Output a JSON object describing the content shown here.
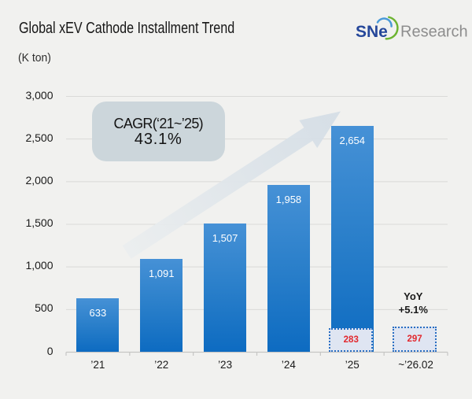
{
  "title": "Global xEV Cathode Installment Trend",
  "unit_label": "(K ton)",
  "logo": {
    "brand_sne": "SNe",
    "brand_research": "Research",
    "sne_color": "#25479a",
    "research_color": "#8d8d8d",
    "arc_blue": "#4a9ad8",
    "arc_green": "#6db431"
  },
  "annotations": {
    "cagr_line1": "CAGR(‘21~’25)",
    "cagr_line2": "43.1%",
    "yoy_line1": "YoY",
    "yoy_line2": "+5.1%"
  },
  "colors": {
    "background": "#f1f1ef",
    "gridline": "#dadad8",
    "axis": "#c6c6c4",
    "bar_top": "#4a94d8",
    "bar_bottom": "#0c6ac0",
    "bubble_fill": "#ccd6db",
    "arrow_fill": "#d9e1e8",
    "box_fill": "#e1e7f6",
    "box_border": "#4678cf",
    "box_text": "#e12e2e"
  },
  "chart_data": {
    "type": "bar",
    "title": "Global xEV Cathode Installment Trend",
    "ylabel": "(K ton)",
    "categories": [
      "’21",
      "’22",
      "’23",
      "’24",
      "’25",
      "~’26.02"
    ],
    "values": [
      633,
      1091,
      1507,
      1958,
      2654,
      null
    ],
    "value_labels": [
      "633",
      "1,091",
      "1,507",
      "1,958",
      "2,654"
    ],
    "highlight_boxes": [
      {
        "category": "’25",
        "value": 283,
        "label": "283"
      },
      {
        "category": "~’26.02",
        "value": 297,
        "label": "297"
      }
    ],
    "y_ticks": [
      {
        "value": 3000,
        "label": "3,000"
      },
      {
        "value": 2500,
        "label": "2,500"
      },
      {
        "value": 2000,
        "label": "2,000"
      },
      {
        "value": 1500,
        "label": "1,500"
      },
      {
        "value": 1000,
        "label": "1,000"
      },
      {
        "value": 500,
        "label": "500"
      },
      {
        "value": 0,
        "label": "0"
      }
    ],
    "ylim": [
      0,
      3000
    ],
    "grid": true,
    "legend": false,
    "cagr_annotation": "CAGR(‘21~’25) 43.1%",
    "yoy_annotation": "YoY +5.1%"
  }
}
